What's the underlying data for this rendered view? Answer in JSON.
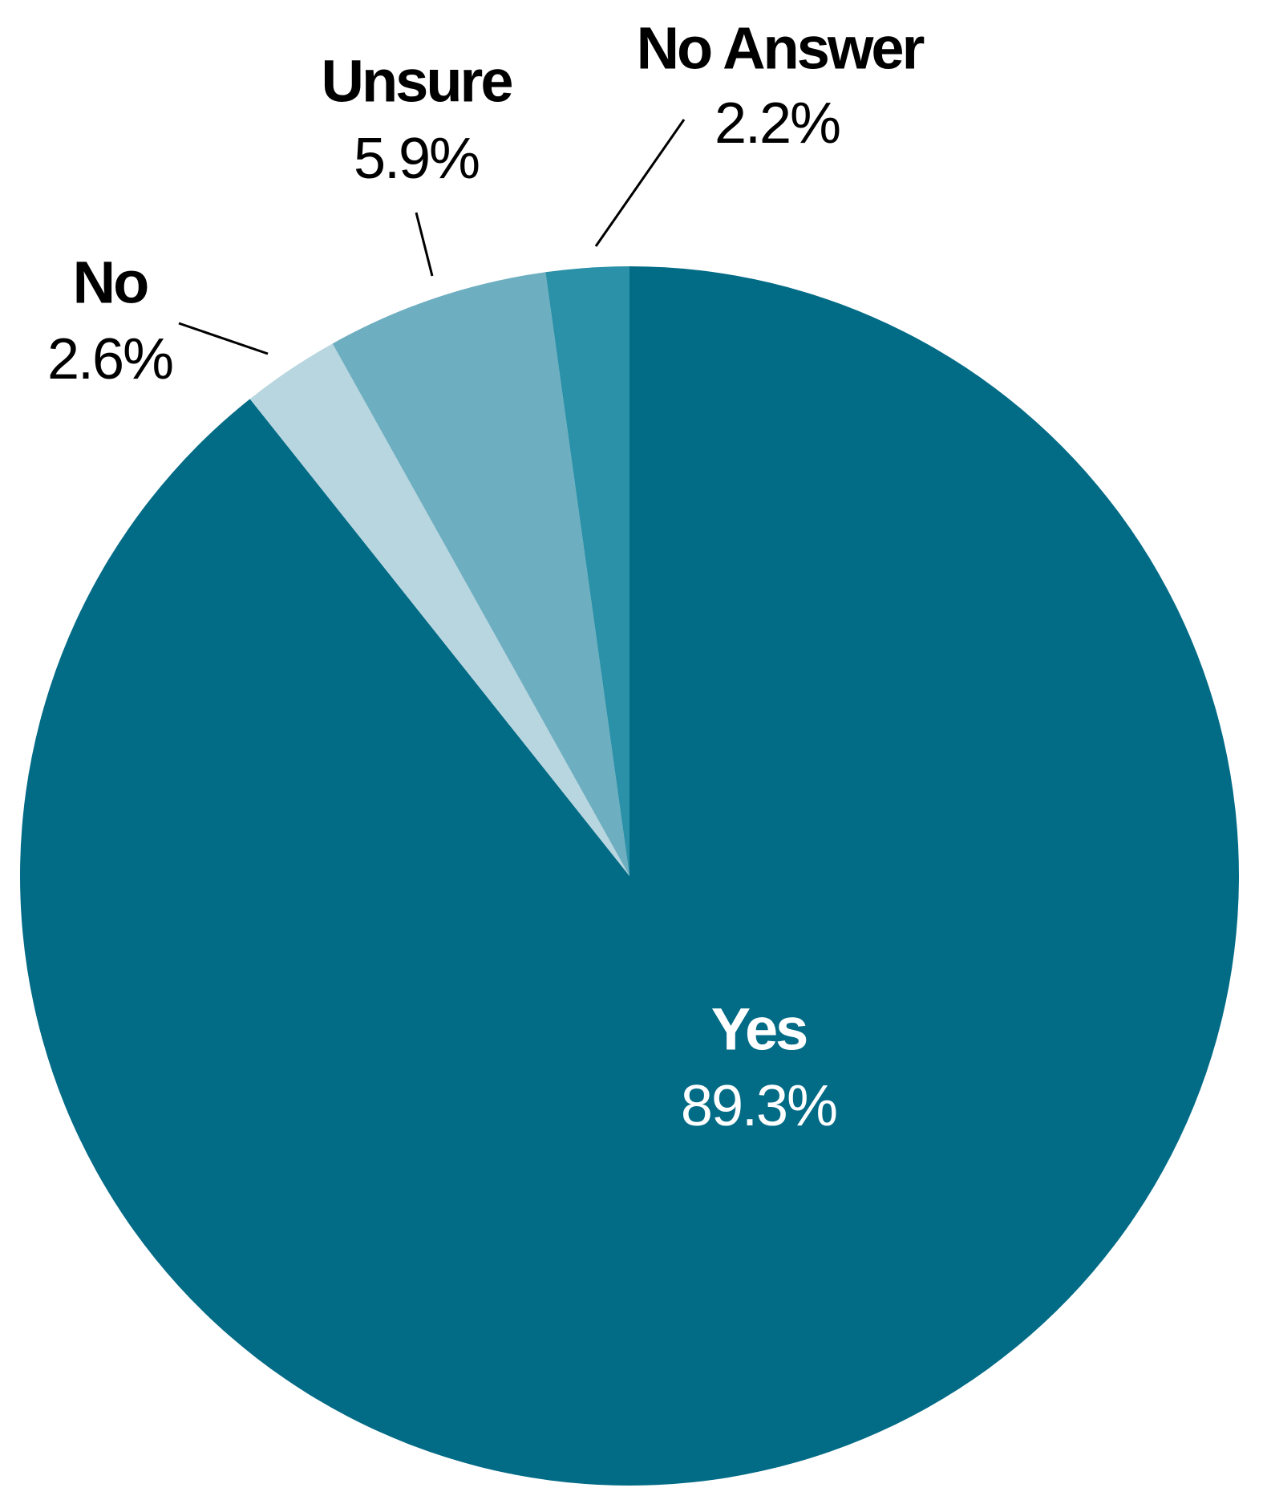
{
  "chart_data": {
    "type": "pie",
    "categories": [
      "Yes",
      "No",
      "Unsure",
      "No Answer"
    ],
    "values": [
      89.3,
      2.6,
      5.9,
      2.2
    ],
    "value_labels": [
      "89.3%",
      "2.6%",
      "5.9%",
      "2.2%"
    ],
    "colors": [
      "#026b86",
      "#b8d6e0",
      "#6daec0",
      "#2a91a8"
    ]
  }
}
